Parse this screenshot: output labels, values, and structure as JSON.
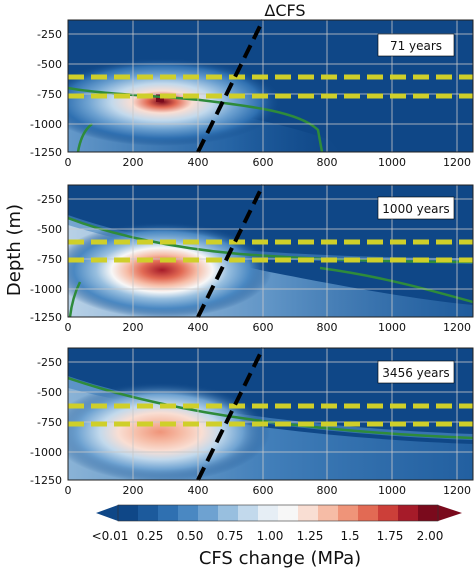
{
  "figure": {
    "title": "ΔCFS",
    "shared_ylabel": "Depth (m)",
    "colorbar_label": "CFS change (MPa)"
  },
  "colors": {
    "background_blue": "#0f4787",
    "fault_line": "#000000",
    "aquifer_lines": "#cfcf2a",
    "contour_green": "#2e8b3b",
    "grid": "#c8c8c8"
  },
  "chart_data": [
    {
      "type": "heatmap",
      "panel_label": "71 years",
      "xlim": [
        0,
        1250
      ],
      "ylim": [
        -1250,
        -150
      ],
      "xticks": [
        0,
        200,
        400,
        600,
        800,
        1000,
        1200
      ],
      "yticks": [
        -250,
        -500,
        -750,
        -1000,
        -1250
      ],
      "grid": true,
      "peak": {
        "x": 290,
        "y": -790,
        "value": 2.0
      },
      "fault_line": {
        "x": [
          400,
          600
        ],
        "y": [
          -1250,
          -150
        ]
      },
      "aquifer_bounds": [
        -630,
        -780
      ]
    },
    {
      "type": "heatmap",
      "panel_label": "1000 years",
      "xlim": [
        0,
        1250
      ],
      "ylim": [
        -1250,
        -150
      ],
      "xticks": [
        0,
        200,
        400,
        600,
        800,
        1000,
        1200
      ],
      "yticks": [
        -250,
        -500,
        -750,
        -1000,
        -1250
      ],
      "grid": true,
      "peak": {
        "x": 290,
        "y": -820,
        "value": 2.0
      },
      "fault_line": {
        "x": [
          400,
          600
        ],
        "y": [
          -1250,
          -150
        ]
      },
      "aquifer_bounds": [
        -630,
        -780
      ]
    },
    {
      "type": "heatmap",
      "panel_label": "3456 years",
      "xlim": [
        0,
        1250
      ],
      "ylim": [
        -1250,
        -150
      ],
      "xticks": [
        0,
        200,
        400,
        600,
        800,
        1000,
        1200
      ],
      "yticks": [
        -250,
        -500,
        -750,
        -1000,
        -1250
      ],
      "grid": true,
      "peak": {
        "x": 280,
        "y": -860,
        "value": 1.75
      },
      "fault_line": {
        "x": [
          400,
          600
        ],
        "y": [
          -1250,
          -150
        ]
      },
      "aquifer_bounds": [
        -630,
        -780
      ]
    }
  ],
  "colorbar": {
    "tick_labels": [
      "<0.01",
      "0.25",
      "0.50",
      "0.75",
      "1.00",
      "1.25",
      "1.5",
      "1.75",
      "2.00"
    ],
    "colors": [
      "#0f4787",
      "#1c5a9c",
      "#2f70b1",
      "#4a88c2",
      "#6ea2d1",
      "#98bfdf",
      "#c2d9ec",
      "#e6eef5",
      "#f7f7f7",
      "#f9ded3",
      "#f6bca6",
      "#ef9479",
      "#e26a54",
      "#cc3f39",
      "#a61b29",
      "#7a0a1c"
    ]
  }
}
